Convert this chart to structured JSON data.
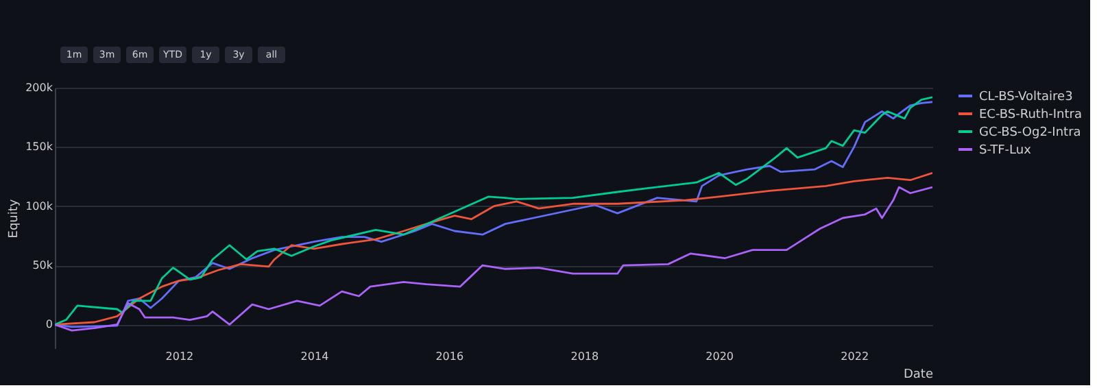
{
  "chart_data": {
    "type": "line",
    "xlabel": "Date",
    "ylabel": "Equity",
    "annotations": [
      "1m",
      "3m",
      "6m",
      "YTD",
      "1y",
      "3y",
      "all"
    ],
    "xlim": [
      "2010-03",
      "2023-03"
    ],
    "xticks": [
      {
        "value": "2012",
        "label": "2012"
      },
      {
        "value": "2014",
        "label": "2014"
      },
      {
        "value": "2016",
        "label": "2016"
      },
      {
        "value": "2018",
        "label": "2018"
      },
      {
        "value": "2020",
        "label": "2020"
      },
      {
        "value": "2022",
        "label": "2022"
      }
    ],
    "ylim": [
      -20000,
      200000
    ],
    "yticks": [
      {
        "value": 0,
        "label": "0"
      },
      {
        "value": 50000,
        "label": "50k"
      },
      {
        "value": 100000,
        "label": "100k"
      },
      {
        "value": 150000,
        "label": "150k"
      },
      {
        "value": 200000,
        "label": "200k"
      }
    ],
    "grid": "y",
    "legend": "top right",
    "line_style": "solid",
    "marker": "none",
    "series": [
      {
        "name": "CL-BS-Voltaire3",
        "color": "#636efa",
        "x": [
          "2010-03",
          "2010-06",
          "2011-02",
          "2011-04",
          "2011-06",
          "2011-08",
          "2011-10",
          "2012-01",
          "2012-04",
          "2012-07",
          "2012-10",
          "2013-02",
          "2013-06",
          "2014-01",
          "2014-06",
          "2014-10",
          "2015-01",
          "2015-07",
          "2015-10",
          "2016-02",
          "2016-07",
          "2016-11",
          "2017-01",
          "2018-03",
          "2018-07",
          "2019-02",
          "2019-09",
          "2019-10",
          "2020-01",
          "2020-06",
          "2020-10",
          "2020-12",
          "2021-06",
          "2021-09",
          "2021-11",
          "2022-01",
          "2022-03",
          "2022-06",
          "2022-08",
          "2022-09",
          "2022-11",
          "2023-01",
          "2023-03"
        ],
        "values": [
          0,
          -2000,
          -1000,
          20000,
          22000,
          14000,
          22000,
          37000,
          40000,
          52000,
          47000,
          56000,
          63000,
          70000,
          74000,
          74000,
          70000,
          79000,
          85000,
          79000,
          76000,
          85000,
          87000,
          101000,
          94000,
          107000,
          104000,
          117000,
          126000,
          131000,
          134000,
          129000,
          131000,
          138000,
          133000,
          150000,
          171000,
          180000,
          174000,
          178000,
          185000,
          187000,
          188000
        ]
      },
      {
        "name": "EC-BS-Ruth-Intra",
        "color": "#ef553b",
        "x": [
          "2010-03",
          "2010-10",
          "2011-02",
          "2011-06",
          "2011-08",
          "2011-10",
          "2012-01",
          "2012-04",
          "2012-08",
          "2012-12",
          "2013-05",
          "2013-06",
          "2013-09",
          "2014-01",
          "2014-06",
          "2014-12",
          "2015-05",
          "2015-09",
          "2016-02",
          "2016-05",
          "2016-09",
          "2017-01",
          "2017-05",
          "2017-11",
          "2018-07",
          "2019-07",
          "2020-01",
          "2020-10",
          "2021-08",
          "2022-01",
          "2022-07",
          "2022-11",
          "2023-03"
        ],
        "values": [
          0,
          2000,
          7000,
          22000,
          27000,
          32000,
          37000,
          39000,
          46000,
          51000,
          49000,
          55000,
          67000,
          64000,
          68000,
          72000,
          79000,
          85000,
          92000,
          89000,
          100000,
          104000,
          98000,
          102000,
          102000,
          105000,
          108000,
          113000,
          117000,
          121000,
          124000,
          122000,
          128000
        ]
      },
      {
        "name": "GC-BS-Og2-Intra",
        "color": "#00cc96",
        "x": [
          "2010-03",
          "2010-05",
          "2010-07",
          "2011-02",
          "2011-03",
          "2011-05",
          "2011-08",
          "2011-10",
          "2011-12",
          "2012-03",
          "2012-05",
          "2012-07",
          "2012-10",
          "2013-01",
          "2013-03",
          "2013-06",
          "2013-09",
          "2014-01",
          "2014-04",
          "2014-12",
          "2015-05",
          "2015-11",
          "2016-08",
          "2016-11",
          "2017-01",
          "2017-11",
          "2018-07",
          "2018-12",
          "2019-09",
          "2020-01",
          "2020-04",
          "2020-06",
          "2020-11",
          "2021-01",
          "2021-03",
          "2021-08",
          "2021-09",
          "2021-11",
          "2022-01",
          "2022-03",
          "2022-06",
          "2022-07",
          "2022-10",
          "2022-11",
          "2023-01",
          "2023-03"
        ],
        "values": [
          0,
          4000,
          16000,
          13000,
          10000,
          20000,
          20000,
          39000,
          48000,
          38000,
          40000,
          55000,
          67000,
          55000,
          62000,
          64000,
          58000,
          66000,
          71000,
          80000,
          76000,
          89000,
          108000,
          107000,
          106000,
          107000,
          112000,
          115000,
          120000,
          128000,
          118000,
          123000,
          141000,
          149000,
          141000,
          149000,
          155000,
          151000,
          164000,
          162000,
          177000,
          180000,
          174000,
          183000,
          190000,
          192000
        ]
      },
      {
        "name": "S-TF-Lux",
        "color": "#ab63fa",
        "x": [
          "2010-03",
          "2010-06",
          "2010-10",
          "2011-02",
          "2011-04",
          "2011-06",
          "2011-07",
          "2011-12",
          "2012-03",
          "2012-06",
          "2012-07",
          "2012-10",
          "2013-02",
          "2013-05",
          "2013-10",
          "2014-02",
          "2014-06",
          "2014-09",
          "2014-11",
          "2015-05",
          "2015-09",
          "2016-03",
          "2016-05",
          "2016-07",
          "2016-11",
          "2017-05",
          "2017-11",
          "2018-07",
          "2018-08",
          "2019-04",
          "2019-08",
          "2020-02",
          "2020-07",
          "2021-01",
          "2021-04",
          "2021-07",
          "2021-11",
          "2022-03",
          "2022-05",
          "2022-06",
          "2022-08",
          "2022-09",
          "2022-11",
          "2023-03"
        ],
        "values": [
          0,
          -5000,
          -3000,
          0,
          18000,
          13000,
          6000,
          6000,
          4000,
          7000,
          11000,
          0,
          17000,
          13000,
          20000,
          16000,
          28000,
          24000,
          32000,
          36000,
          34000,
          32000,
          41000,
          50000,
          47000,
          48000,
          43000,
          43000,
          50000,
          51000,
          60000,
          56000,
          63000,
          63000,
          72000,
          81000,
          90000,
          93000,
          98000,
          90000,
          105000,
          116000,
          111000,
          116000
        ]
      }
    ]
  }
}
